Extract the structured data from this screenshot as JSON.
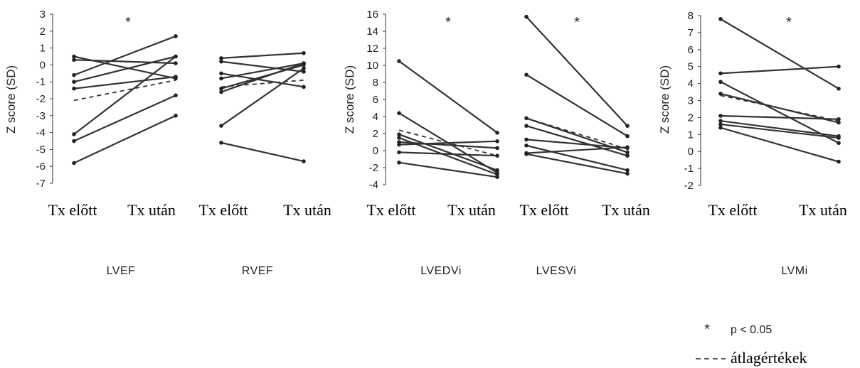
{
  "chart_data": [
    {
      "type": "line",
      "panel_label": "LVEF",
      "ylabel": "Z score (SD)",
      "ylim": [
        -7,
        3
      ],
      "yticks": [
        "3",
        "2",
        "1",
        "0",
        "-1",
        "-2",
        "-3",
        "-4",
        "-5",
        "-6",
        "-7"
      ],
      "categories": [
        "Tx előtt",
        "Tx után"
      ],
      "significant": "*",
      "series": [
        {
          "values": [
            0.5,
            -0.8
          ]
        },
        {
          "values": [
            0.3,
            0.1
          ]
        },
        {
          "values": [
            -0.6,
            1.7
          ]
        },
        {
          "values": [
            -1.0,
            0.5
          ]
        },
        {
          "values": [
            -1.4,
            -0.7
          ]
        },
        {
          "values": [
            -4.1,
            0.5
          ]
        },
        {
          "values": [
            -4.5,
            -1.8
          ]
        },
        {
          "values": [
            -5.8,
            -3.0
          ]
        }
      ],
      "mean": [
        -2.1,
        -0.9
      ]
    },
    {
      "type": "line",
      "panel_label": "RVEF",
      "ylim": [
        -7,
        3
      ],
      "categories": [
        "Tx előtt",
        "Tx után"
      ],
      "series": [
        {
          "values": [
            0.4,
            0.7
          ]
        },
        {
          "values": [
            0.2,
            -0.4
          ]
        },
        {
          "values": [
            -0.5,
            -1.3
          ]
        },
        {
          "values": [
            -0.8,
            0.1
          ]
        },
        {
          "values": [
            -1.4,
            0.0
          ]
        },
        {
          "values": [
            -1.6,
            0.1
          ]
        },
        {
          "values": [
            -3.6,
            -0.2
          ]
        },
        {
          "values": [
            -4.6,
            -5.7
          ]
        }
      ],
      "mean": [
        -1.3,
        -0.9
      ]
    },
    {
      "type": "line",
      "panel_label": "LVEDVi",
      "ylabel": "Z score (SD)",
      "ylim": [
        -4,
        16
      ],
      "yticks": [
        "16",
        "14",
        "12",
        "10",
        "8",
        "6",
        "4",
        "2",
        "0",
        "-2",
        "-4"
      ],
      "categories": [
        "Tx előtt",
        "Tx után"
      ],
      "significant": "*",
      "series": [
        {
          "values": [
            10.5,
            2.1
          ]
        },
        {
          "values": [
            4.4,
            -2.6
          ]
        },
        {
          "values": [
            1.9,
            -2.3
          ]
        },
        {
          "values": [
            1.5,
            -2.8
          ]
        },
        {
          "values": [
            1.0,
            0.3
          ]
        },
        {
          "values": [
            0.7,
            1.1
          ]
        },
        {
          "values": [
            -0.2,
            -0.6
          ]
        },
        {
          "values": [
            -1.4,
            -3.1
          ]
        }
      ],
      "mean": [
        2.4,
        -0.6
      ]
    },
    {
      "type": "line",
      "panel_label": "LVESVi",
      "ylim": [
        -4,
        16
      ],
      "categories": [
        "Tx előtt",
        "Tx után"
      ],
      "significant": "*",
      "series": [
        {
          "values": [
            15.7,
            2.9
          ]
        },
        {
          "values": [
            8.9,
            1.7
          ]
        },
        {
          "values": [
            3.8,
            -0.2
          ]
        },
        {
          "values": [
            2.9,
            -0.6
          ]
        },
        {
          "values": [
            1.3,
            0.3
          ]
        },
        {
          "values": [
            0.6,
            -2.3
          ]
        },
        {
          "values": [
            -0.3,
            0.4
          ]
        },
        {
          "values": [
            -0.4,
            -2.7
          ]
        }
      ],
      "mean": [
        3.8,
        0.2
      ]
    },
    {
      "type": "line",
      "panel_label": "LVMi",
      "ylabel": "Z score (SD)",
      "ylim": [
        -2,
        8
      ],
      "yticks": [
        "8",
        "7",
        "6",
        "5",
        "4",
        "3",
        "2",
        "1",
        "0",
        "-1",
        "-2"
      ],
      "categories": [
        "Tx előtt",
        "Tx után"
      ],
      "significant": "*",
      "series": [
        {
          "values": [
            7.8,
            3.7
          ]
        },
        {
          "values": [
            4.6,
            5.0
          ]
        },
        {
          "values": [
            4.1,
            0.5
          ]
        },
        {
          "values": [
            3.4,
            1.7
          ]
        },
        {
          "values": [
            2.1,
            1.9
          ]
        },
        {
          "values": [
            1.8,
            0.9
          ]
        },
        {
          "values": [
            1.6,
            0.8
          ]
        },
        {
          "values": [
            1.4,
            -0.6
          ]
        }
      ],
      "mean": [
        3.3,
        1.8
      ]
    }
  ],
  "legend": {
    "star_symbol": "*",
    "star_label": "p < 0.05",
    "mean_label": "átlagértékek"
  }
}
